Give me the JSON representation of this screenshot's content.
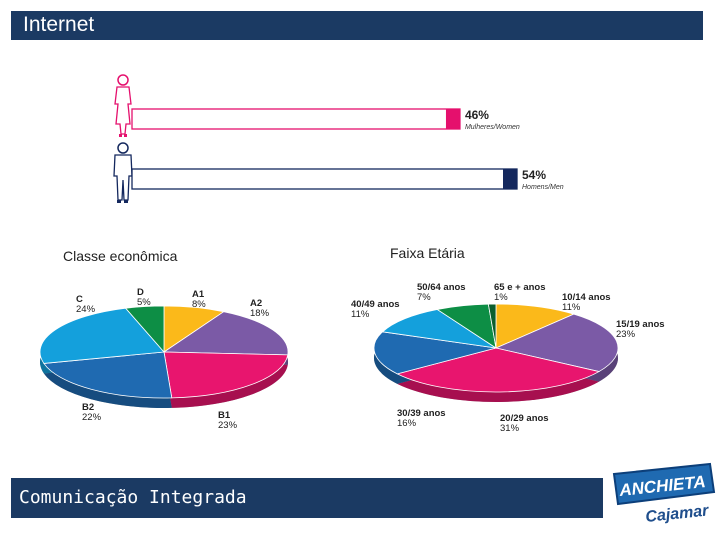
{
  "header": {
    "title": "Internet"
  },
  "footer": {
    "title": "Comunicação Integrada"
  },
  "logo": {
    "brand": "ANCHIETA",
    "subtitle": "Cajamar"
  },
  "colors": {
    "pink": "#e5106d",
    "navy": "#14285e",
    "orange": "#fbb91a",
    "purple": "#7b5aa6",
    "magenta": "#e8156e",
    "blue": "#1f6ab1",
    "cyan": "#14a0dc",
    "green": "#0d8e45",
    "darkgreen": "#0b5e2e",
    "header": "#1b3a63"
  },
  "chart_data": [
    {
      "type": "bar",
      "title": "",
      "categories": [
        "Mulheres/Women",
        "Homens/Men"
      ],
      "values": [
        46,
        54
      ],
      "value_labels": [
        "46%",
        "54%"
      ],
      "category_labels": [
        "Mulheres/Women",
        "Homens/Men"
      ],
      "xlim": [
        0,
        60
      ]
    },
    {
      "type": "pie",
      "title": "Classe econômica",
      "slices": [
        {
          "label": "A1",
          "value": 8,
          "pct": "8%",
          "color": "#fbb91a"
        },
        {
          "label": "A2",
          "value": 18,
          "pct": "18%",
          "color": "#7b5aa6"
        },
        {
          "label": "B1",
          "value": 23,
          "pct": "23%",
          "color": "#e8156e"
        },
        {
          "label": "B2",
          "value": 22,
          "pct": "22%",
          "color": "#1f6ab1"
        },
        {
          "label": "C",
          "value": 24,
          "pct": "24%",
          "color": "#14a0dc"
        },
        {
          "label": "D",
          "value": 5,
          "pct": "5%",
          "color": "#0d8e45"
        }
      ]
    },
    {
      "type": "pie",
      "title": "Faixa Etária",
      "slices": [
        {
          "label": "10/14 anos",
          "value": 11,
          "pct": "11%",
          "color": "#fbb91a"
        },
        {
          "label": "15/19 anos",
          "value": 23,
          "pct": "23%",
          "color": "#7b5aa6"
        },
        {
          "label": "20/29 anos",
          "value": 31,
          "pct": "31%",
          "color": "#e8156e"
        },
        {
          "label": "30/39 anos",
          "value": 16,
          "pct": "16%",
          "color": "#1f6ab1"
        },
        {
          "label": "40/49 anos",
          "value": 11,
          "pct": "11%",
          "color": "#14a0dc"
        },
        {
          "label": "50/64 anos",
          "value": 7,
          "pct": "7%",
          "color": "#0d8e45"
        },
        {
          "label": "65 e + anos",
          "value": 1,
          "pct": "1%",
          "color": "#0b5e2e"
        }
      ]
    }
  ]
}
